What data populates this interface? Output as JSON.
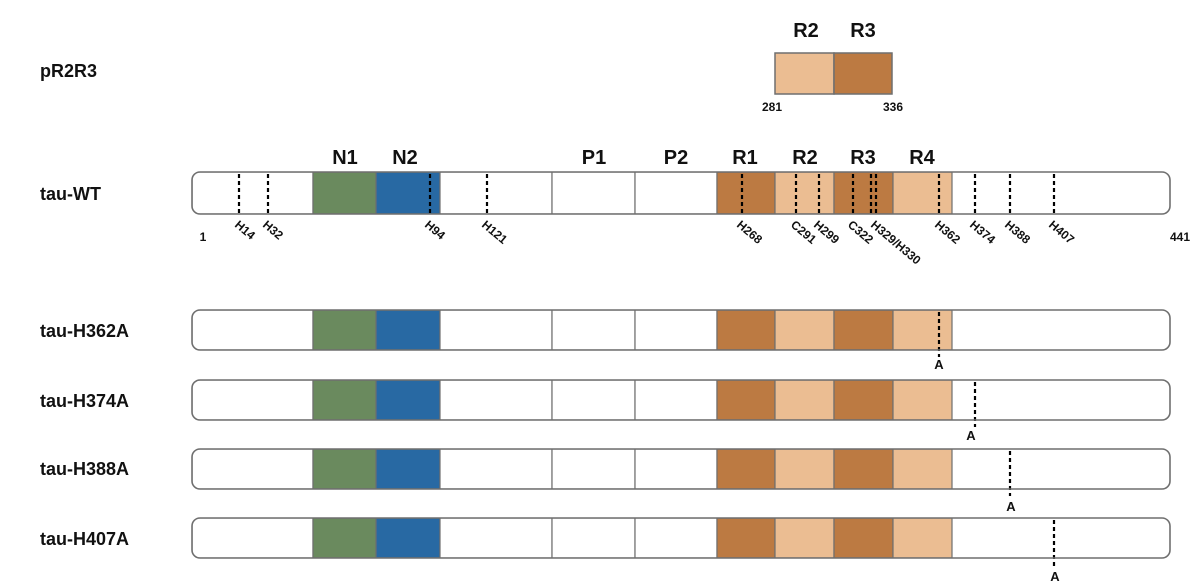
{
  "colors": {
    "n1": "#6a8a5e",
    "n2": "#2869a3",
    "r_dark": "#bc7a42",
    "r_light": "#ebbd92",
    "outline": "#6f6f6f",
    "white": "#ffffff"
  },
  "fragment": {
    "label": "pR2R3",
    "domains": [
      "R2",
      "R3"
    ],
    "start": "281",
    "end": "336"
  },
  "wt": {
    "label": "tau-WT",
    "start": "1",
    "end": "441",
    "domain_labels": [
      "N1",
      "N2",
      "P1",
      "P2",
      "R1",
      "R2",
      "R3",
      "R4"
    ],
    "sites": [
      "H14",
      "H32",
      "H94",
      "H121",
      "H268",
      "C291",
      "H299",
      "C322",
      "H329/H330",
      "H362",
      "H374",
      "H388",
      "H407"
    ]
  },
  "mutants": [
    {
      "label": "tau-H362A",
      "mark": "A"
    },
    {
      "label": "tau-H374A",
      "mark": "A"
    },
    {
      "label": "tau-H388A",
      "mark": "A"
    },
    {
      "label": "tau-H407A",
      "mark": "A"
    }
  ]
}
